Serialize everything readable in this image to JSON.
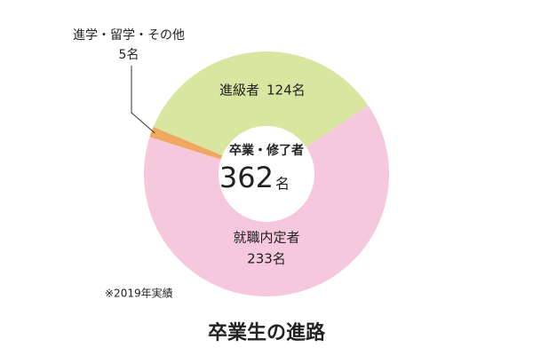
{
  "chart_data": {
    "type": "donut",
    "title": "卒業生の進路",
    "categories": [
      "進級者",
      "就職内定者",
      "進学・留学・その他"
    ],
    "values": [
      124,
      233,
      5
    ],
    "value_labels": [
      "124名",
      "233名",
      "5名"
    ],
    "colors": [
      "#d8e6a0",
      "#f6c8dd",
      "#f0a860"
    ],
    "center": {
      "label": "卒業・修了者",
      "value": 362,
      "unit": "名"
    },
    "note": "※2019年実績"
  }
}
